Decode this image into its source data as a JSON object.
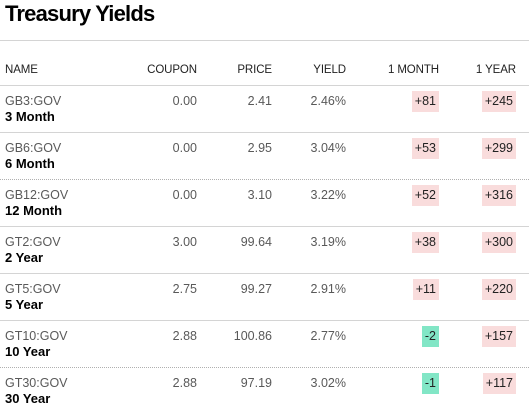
{
  "title": "Treasury Yields",
  "columns": {
    "name": "NAME",
    "coupon": "COUPON",
    "price": "PRICE",
    "yield": "YIELD",
    "month": "1 MONTH",
    "year": "1 YEAR"
  },
  "colors": {
    "positive_change": "#f9dcdc",
    "negative_change": "#82e6c6"
  },
  "rows": [
    {
      "ticker": "GB3:GOV",
      "term": "3 Month",
      "coupon": "0.00",
      "price": "2.41",
      "yield": "2.46%",
      "month": "+81",
      "year": "+245"
    },
    {
      "ticker": "GB6:GOV",
      "term": "6 Month",
      "coupon": "0.00",
      "price": "2.95",
      "yield": "3.04%",
      "month": "+53",
      "year": "+299"
    },
    {
      "ticker": "GB12:GOV",
      "term": "12 Month",
      "coupon": "0.00",
      "price": "3.10",
      "yield": "3.22%",
      "month": "+52",
      "year": "+316"
    },
    {
      "ticker": "GT2:GOV",
      "term": "2 Year",
      "coupon": "3.00",
      "price": "99.64",
      "yield": "3.19%",
      "month": "+38",
      "year": "+300"
    },
    {
      "ticker": "GT5:GOV",
      "term": "5 Year",
      "coupon": "2.75",
      "price": "99.27",
      "yield": "2.91%",
      "month": "+11",
      "year": "+220"
    },
    {
      "ticker": "GT10:GOV",
      "term": "10 Year",
      "coupon": "2.88",
      "price": "100.86",
      "yield": "2.77%",
      "month": "-2",
      "year": "+157"
    },
    {
      "ticker": "GT30:GOV",
      "term": "30 Year",
      "coupon": "2.88",
      "price": "97.19",
      "yield": "3.02%",
      "month": "-1",
      "year": "+117"
    }
  ]
}
